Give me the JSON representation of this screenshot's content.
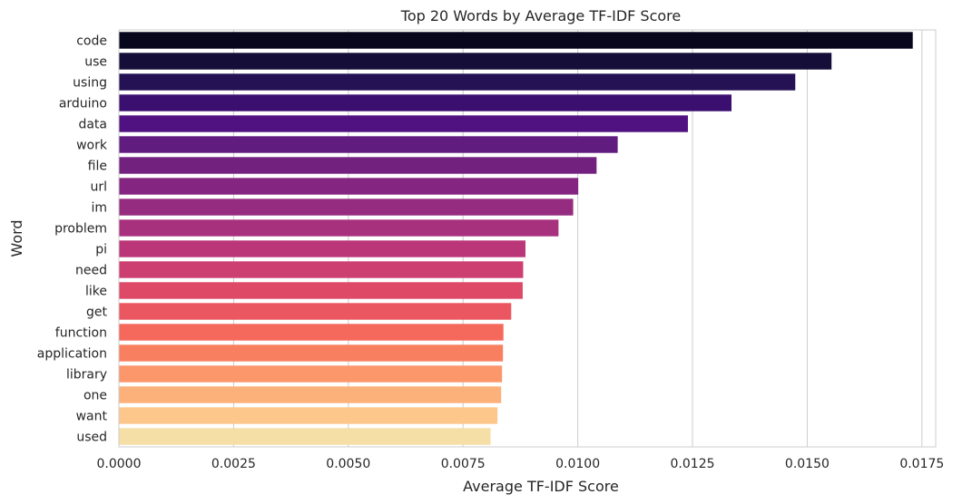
{
  "chart_data": {
    "type": "bar",
    "orientation": "horizontal",
    "title": "Top 20 Words by Average TF-IDF Score",
    "xlabel": "Average TF-IDF Score",
    "ylabel": "Word",
    "xlim": [
      0,
      0.0178
    ],
    "xticks": [
      0,
      0.0025,
      0.005,
      0.0075,
      0.01,
      0.0125,
      0.015,
      0.0175
    ],
    "xtick_labels": [
      "0.0000",
      "0.0025",
      "0.0050",
      "0.0075",
      "0.0100",
      "0.0125",
      "0.0150",
      "0.0175"
    ],
    "grid": "vertical",
    "palette": "magma",
    "categories": [
      "code",
      "use",
      "using",
      "arduino",
      "data",
      "work",
      "file",
      "url",
      "im",
      "problem",
      "pi",
      "need",
      "like",
      "get",
      "function",
      "application",
      "library",
      "one",
      "want",
      "used"
    ],
    "values": [
      0.0173,
      0.01553,
      0.01474,
      0.01335,
      0.0124,
      0.01087,
      0.01041,
      0.01001,
      0.0099,
      0.00958,
      0.00886,
      0.00881,
      0.0088,
      0.00855,
      0.00838,
      0.00837,
      0.00835,
      0.00833,
      0.00825,
      0.0081
    ],
    "colors": [
      "#07061c",
      "#150e38",
      "#251255",
      "#3b0f70",
      "#4f1280",
      "#611c7f",
      "#72217f",
      "#842681",
      "#952c80",
      "#a8317e",
      "#bb3678",
      "#cd3f71",
      "#de4968",
      "#eb5760",
      "#f4695c",
      "#f88060",
      "#fb976b",
      "#fcb07a",
      "#fdc78c",
      "#f6dfa7"
    ]
  }
}
